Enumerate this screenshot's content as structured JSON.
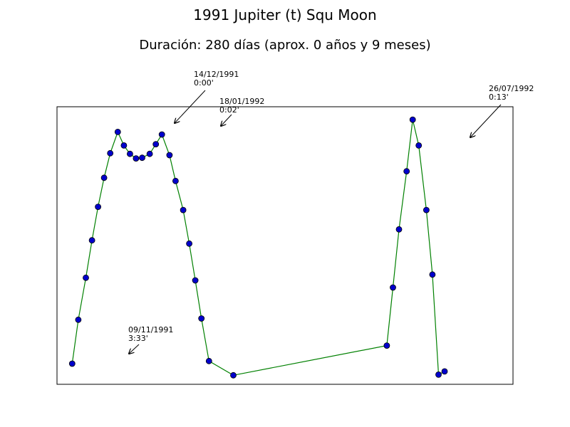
{
  "chart_data": {
    "type": "line",
    "title": "1991 Jupiter (t) Squ Moon",
    "subtitle": "Duración: 280 días (aprox. 0 años y 9 meses)",
    "xlabel": "",
    "ylabel": "",
    "grid": false,
    "axes_visible": false,
    "line_color": "#008000",
    "marker_color": "#0000cc",
    "marker_edge": "#000000",
    "xlim": [
      -10.0,
      290.0
    ],
    "ylim": [
      -0.1,
      4.2
    ],
    "x": [
      0,
      4,
      9,
      13,
      17,
      21,
      25,
      30,
      34,
      38,
      42,
      46,
      51,
      55,
      59,
      64,
      68,
      73,
      77,
      81,
      85,
      90,
      106,
      207,
      211,
      215,
      220,
      224,
      228,
      233,
      237,
      241,
      245
    ],
    "y": [
      0.22,
      0.9,
      1.55,
      2.13,
      2.65,
      3.1,
      3.48,
      3.81,
      3.6,
      3.47,
      3.4,
      3.41,
      3.47,
      3.62,
      3.77,
      3.45,
      3.05,
      2.6,
      2.08,
      1.51,
      0.92,
      0.26,
      0.04,
      0.5,
      1.4,
      2.3,
      3.2,
      4.0,
      3.6,
      2.6,
      1.6,
      0.05,
      0.1
    ],
    "annotations": [
      {
        "date": "09/11/1991",
        "value": "3:33'"
      },
      {
        "date": "14/12/1991",
        "value": "0:00'"
      },
      {
        "date": "18/01/1992",
        "value": "0:02'"
      },
      {
        "date": "26/07/1992",
        "value": "0:13'"
      }
    ]
  }
}
